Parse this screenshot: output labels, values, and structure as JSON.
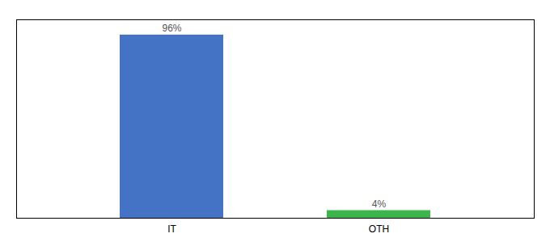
{
  "chart_data": {
    "type": "bar",
    "categories": [
      "IT",
      "OTH"
    ],
    "values": [
      96,
      4
    ],
    "value_labels": [
      "96%",
      "4%"
    ],
    "colors": [
      "#4472C4",
      "#3CB54A"
    ],
    "ylim": [
      0,
      104
    ],
    "yticks": [],
    "grid": false,
    "data_labels": true,
    "tick_labels": "x"
  }
}
